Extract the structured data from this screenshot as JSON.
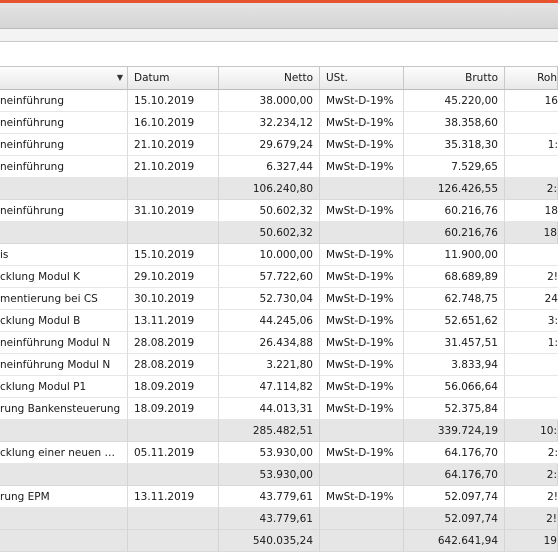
{
  "header": {
    "col0": "",
    "col1": "Datum",
    "col2": "Netto",
    "col3": "USt.",
    "col4": "Brutto",
    "col5": "Roh"
  },
  "rows": [
    {
      "type": "data",
      "c0": "neinführung",
      "c1": "15.10.2019",
      "c2": "38.000,00",
      "c3": "MwSt-D-19%",
      "c4": "45.220,00",
      "c5": "16"
    },
    {
      "type": "data",
      "c0": "neinführung",
      "c1": "16.10.2019",
      "c2": "32.234,12",
      "c3": "MwSt-D-19%",
      "c4": "38.358,60",
      "c5": ""
    },
    {
      "type": "data",
      "c0": "neinführung",
      "c1": "21.10.2019",
      "c2": "29.679,24",
      "c3": "MwSt-D-19%",
      "c4": "35.318,30",
      "c5": "1:"
    },
    {
      "type": "data",
      "c0": "neinführung",
      "c1": "21.10.2019",
      "c2": "6.327,44",
      "c3": "MwSt-D-19%",
      "c4": "7.529,65",
      "c5": ""
    },
    {
      "type": "sub",
      "c0": "",
      "c1": "",
      "c2": "106.240,80",
      "c3": "",
      "c4": "126.426,55",
      "c5": "2:"
    },
    {
      "type": "data",
      "c0": "neinführung",
      "c1": "31.10.2019",
      "c2": "50.602,32",
      "c3": "MwSt-D-19%",
      "c4": "60.216,76",
      "c5": "18"
    },
    {
      "type": "sub",
      "c0": "",
      "c1": "",
      "c2": "50.602,32",
      "c3": "",
      "c4": "60.216,76",
      "c5": "18"
    },
    {
      "type": "data",
      "c0": "is",
      "c1": "15.10.2019",
      "c2": "10.000,00",
      "c3": "MwSt-D-19%",
      "c4": "11.900,00",
      "c5": ""
    },
    {
      "type": "data",
      "c0": "cklung Modul K",
      "c1": "29.10.2019",
      "c2": "57.722,60",
      "c3": "MwSt-D-19%",
      "c4": "68.689,89",
      "c5": "2!"
    },
    {
      "type": "data",
      "c0": "mentierung bei CS",
      "c1": "30.10.2019",
      "c2": "52.730,04",
      "c3": "MwSt-D-19%",
      "c4": "62.748,75",
      "c5": "24"
    },
    {
      "type": "data",
      "c0": "cklung Modul B",
      "c1": "13.11.2019",
      "c2": "44.245,06",
      "c3": "MwSt-D-19%",
      "c4": "52.651,62",
      "c5": "3:"
    },
    {
      "type": "data",
      "c0": "neinführung Modul N",
      "c1": "28.08.2019",
      "c2": "26.434,88",
      "c3": "MwSt-D-19%",
      "c4": "31.457,51",
      "c5": "1:"
    },
    {
      "type": "data",
      "c0": "neinführung Modul N",
      "c1": "28.08.2019",
      "c2": "3.221,80",
      "c3": "MwSt-D-19%",
      "c4": "3.833,94",
      "c5": ""
    },
    {
      "type": "data",
      "c0": "cklung Modul P1",
      "c1": "18.09.2019",
      "c2": "47.114,82",
      "c3": "MwSt-D-19%",
      "c4": "56.066,64",
      "c5": ""
    },
    {
      "type": "data",
      "c0": "rung Bankensteuerung",
      "c1": "18.09.2019",
      "c2": "44.013,31",
      "c3": "MwSt-D-19%",
      "c4": "52.375,84",
      "c5": ""
    },
    {
      "type": "sub",
      "c0": "",
      "c1": "",
      "c2": "285.482,51",
      "c3": "",
      "c4": "339.724,19",
      "c5": "10:"
    },
    {
      "type": "data",
      "c0": "cklung einer neuen Ben...",
      "c1": "05.11.2019",
      "c2": "53.930,00",
      "c3": "MwSt-D-19%",
      "c4": "64.176,70",
      "c5": "2:"
    },
    {
      "type": "sub",
      "c0": "",
      "c1": "",
      "c2": "53.930,00",
      "c3": "",
      "c4": "64.176,70",
      "c5": "2:"
    },
    {
      "type": "data",
      "c0": "rung EPM",
      "c1": "13.11.2019",
      "c2": "43.779,61",
      "c3": "MwSt-D-19%",
      "c4": "52.097,74",
      "c5": "2!"
    },
    {
      "type": "sub",
      "c0": "",
      "c1": "",
      "c2": "43.779,61",
      "c3": "",
      "c4": "52.097,74",
      "c5": "2!"
    },
    {
      "type": "sub",
      "c0": "",
      "c1": "",
      "c2": "540.035,24",
      "c3": "",
      "c4": "642.641,94",
      "c5": "19"
    }
  ]
}
